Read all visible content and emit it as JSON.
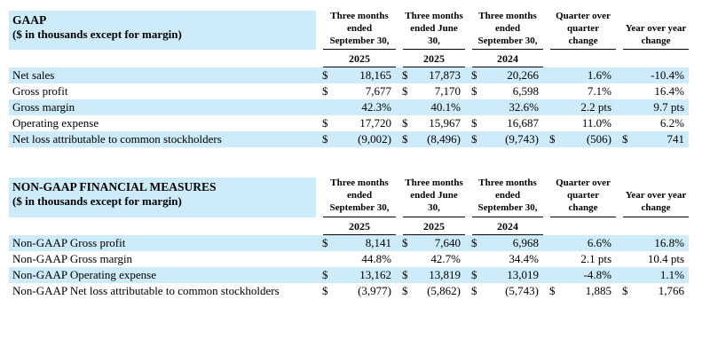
{
  "page": {
    "background": "#ffffff",
    "stripe_color": "#cdebf8",
    "rule_color": "#000000"
  },
  "tables": [
    {
      "title": "GAAP",
      "subtitle": "($ in thousands except for margin)",
      "columns": [
        {
          "label": "Three months ended September 30,",
          "year": "2025"
        },
        {
          "label": "Three months ended June 30,",
          "year": "2025"
        },
        {
          "label": "Three months ended September 30,",
          "year": "2024"
        },
        {
          "label": "Quarter over quarter change",
          "year": ""
        },
        {
          "label": "Year over year change",
          "year": ""
        }
      ],
      "rows": [
        {
          "label": "Net sales",
          "cells": [
            {
              "d": "$",
              "v": "18,165"
            },
            {
              "d": "$",
              "v": "17,873"
            },
            {
              "d": "$",
              "v": "20,266"
            },
            {
              "d": "",
              "v": "1.6%"
            },
            {
              "d": "",
              "v": "-10.4%"
            }
          ]
        },
        {
          "label": "Gross profit",
          "cells": [
            {
              "d": "$",
              "v": "7,677"
            },
            {
              "d": "$",
              "v": "7,170"
            },
            {
              "d": "$",
              "v": "6,598"
            },
            {
              "d": "",
              "v": "7.1%"
            },
            {
              "d": "",
              "v": "16.4%"
            }
          ]
        },
        {
          "label": "Gross margin",
          "cells": [
            {
              "d": "",
              "v": "42.3%"
            },
            {
              "d": "",
              "v": "40.1%"
            },
            {
              "d": "",
              "v": "32.6%"
            },
            {
              "d": "",
              "v": "2.2 pts"
            },
            {
              "d": "",
              "v": "9.7 pts"
            }
          ]
        },
        {
          "label": "Operating expense",
          "cells": [
            {
              "d": "$",
              "v": "17,720"
            },
            {
              "d": "$",
              "v": "15,967"
            },
            {
              "d": "$",
              "v": "16,687"
            },
            {
              "d": "",
              "v": "11.0%"
            },
            {
              "d": "",
              "v": "6.2%"
            }
          ]
        },
        {
          "label": "Net loss attributable to common stockholders",
          "cells": [
            {
              "d": "$",
              "v": "(9,002)"
            },
            {
              "d": "$",
              "v": "(8,496)"
            },
            {
              "d": "$",
              "v": "(9,743)"
            },
            {
              "d": "$",
              "v": "(506)"
            },
            {
              "d": "$",
              "v": "741"
            }
          ]
        }
      ]
    },
    {
      "title": "NON-GAAP FINANCIAL MEASURES",
      "subtitle": "($ in thousands except for margin)",
      "columns": [
        {
          "label": "Three months ended September 30,",
          "year": "2025"
        },
        {
          "label": "Three months ended June 30,",
          "year": "2025"
        },
        {
          "label": "Three months ended September 30,",
          "year": "2024"
        },
        {
          "label": "Quarter over quarter change",
          "year": ""
        },
        {
          "label": "Year over year change",
          "year": ""
        }
      ],
      "rows": [
        {
          "label": "Non-GAAP Gross profit",
          "cells": [
            {
              "d": "$",
              "v": "8,141"
            },
            {
              "d": "$",
              "v": "7,640"
            },
            {
              "d": "$",
              "v": "6,968"
            },
            {
              "d": "",
              "v": "6.6%"
            },
            {
              "d": "",
              "v": "16.8%"
            }
          ]
        },
        {
          "label": "Non-GAAP Gross margin",
          "cells": [
            {
              "d": "",
              "v": "44.8%"
            },
            {
              "d": "",
              "v": "42.7%"
            },
            {
              "d": "",
              "v": "34.4%"
            },
            {
              "d": "",
              "v": "2.1 pts"
            },
            {
              "d": "",
              "v": "10.4 pts"
            }
          ]
        },
        {
          "label": "Non-GAAP Operating expense",
          "cells": [
            {
              "d": "$",
              "v": "13,162"
            },
            {
              "d": "$",
              "v": "13,819"
            },
            {
              "d": "$",
              "v": "13,019"
            },
            {
              "d": "",
              "v": "-4.8%"
            },
            {
              "d": "",
              "v": "1.1%"
            }
          ]
        },
        {
          "label": "Non-GAAP Net loss attributable to common stockholders",
          "cells": [
            {
              "d": "$",
              "v": "(3,977)"
            },
            {
              "d": "$",
              "v": "(5,862)"
            },
            {
              "d": "$",
              "v": "(5,743)"
            },
            {
              "d": "$",
              "v": "1,885"
            },
            {
              "d": "$",
              "v": "1,766"
            }
          ]
        }
      ]
    }
  ]
}
